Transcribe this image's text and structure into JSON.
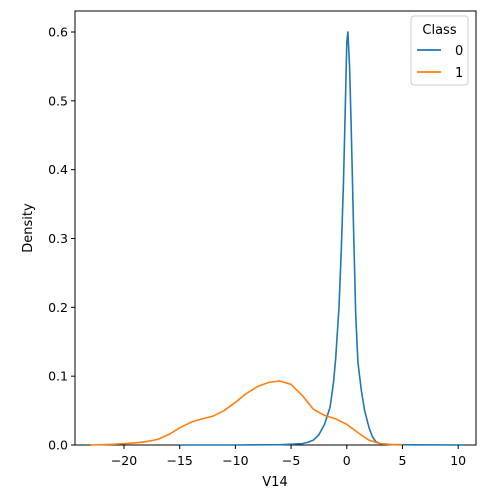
{
  "chart_data": {
    "type": "line",
    "title": "",
    "xlabel": "V14",
    "ylabel": "Density",
    "xlim": [
      -24.4,
      11.6
    ],
    "ylim": [
      0,
      0.6305
    ],
    "xticks": [
      -20,
      -15,
      -10,
      -5,
      0,
      5,
      10
    ],
    "xtick_labels": [
      "−20",
      "−15",
      "−10",
      "−5",
      "0",
      "5",
      "10"
    ],
    "yticks": [
      0.0,
      0.1,
      0.2,
      0.3,
      0.4,
      0.5,
      0.6
    ],
    "ytick_labels": [
      "0.0",
      "0.1",
      "0.2",
      "0.3",
      "0.4",
      "0.5",
      "0.6"
    ],
    "grid": false,
    "legend": {
      "title": "Class",
      "placement": "top-right"
    },
    "series": [
      {
        "name": "0",
        "color": "#1f77b4",
        "points": [
          [
            -15,
            0
          ],
          [
            -10,
            0
          ],
          [
            -6,
            0.0005
          ],
          [
            -4,
            0.002
          ],
          [
            -3.5,
            0.004
          ],
          [
            -3,
            0.007
          ],
          [
            -2.5,
            0.015
          ],
          [
            -2,
            0.03
          ],
          [
            -1.5,
            0.055
          ],
          [
            -1.2,
            0.09
          ],
          [
            -1,
            0.125
          ],
          [
            -0.7,
            0.2
          ],
          [
            -0.5,
            0.28
          ],
          [
            -0.3,
            0.38
          ],
          [
            -0.15,
            0.48
          ],
          [
            0,
            0.585
          ],
          [
            0.1,
            0.6
          ],
          [
            0.25,
            0.55
          ],
          [
            0.4,
            0.46
          ],
          [
            0.6,
            0.32
          ],
          [
            0.8,
            0.19
          ],
          [
            1,
            0.12
          ],
          [
            1.3,
            0.08
          ],
          [
            1.6,
            0.05
          ],
          [
            2,
            0.025
          ],
          [
            2.3,
            0.012
          ],
          [
            2.6,
            0.005
          ],
          [
            3,
            0.002
          ],
          [
            4,
            0.0006
          ],
          [
            6,
            0.0002
          ],
          [
            10.5,
            0
          ]
        ]
      },
      {
        "name": "1",
        "color": "#ff7f0e",
        "points": [
          [
            -23,
            0
          ],
          [
            -21,
            0.001
          ],
          [
            -20,
            0.002
          ],
          [
            -19,
            0.003
          ],
          [
            -18,
            0.005
          ],
          [
            -17,
            0.008
          ],
          [
            -16,
            0.015
          ],
          [
            -15,
            0.025
          ],
          [
            -14,
            0.033
          ],
          [
            -13,
            0.038
          ],
          [
            -12,
            0.042
          ],
          [
            -11,
            0.05
          ],
          [
            -10,
            0.062
          ],
          [
            -9,
            0.075
          ],
          [
            -8,
            0.085
          ],
          [
            -7,
            0.091
          ],
          [
            -6,
            0.093
          ],
          [
            -5,
            0.088
          ],
          [
            -4,
            0.072
          ],
          [
            -3,
            0.052
          ],
          [
            -2,
            0.043
          ],
          [
            -1,
            0.038
          ],
          [
            0,
            0.03
          ],
          [
            1,
            0.018
          ],
          [
            2,
            0.007
          ],
          [
            3,
            0.002
          ],
          [
            4,
            0.0006
          ],
          [
            5,
            0.0001
          ]
        ]
      }
    ]
  }
}
